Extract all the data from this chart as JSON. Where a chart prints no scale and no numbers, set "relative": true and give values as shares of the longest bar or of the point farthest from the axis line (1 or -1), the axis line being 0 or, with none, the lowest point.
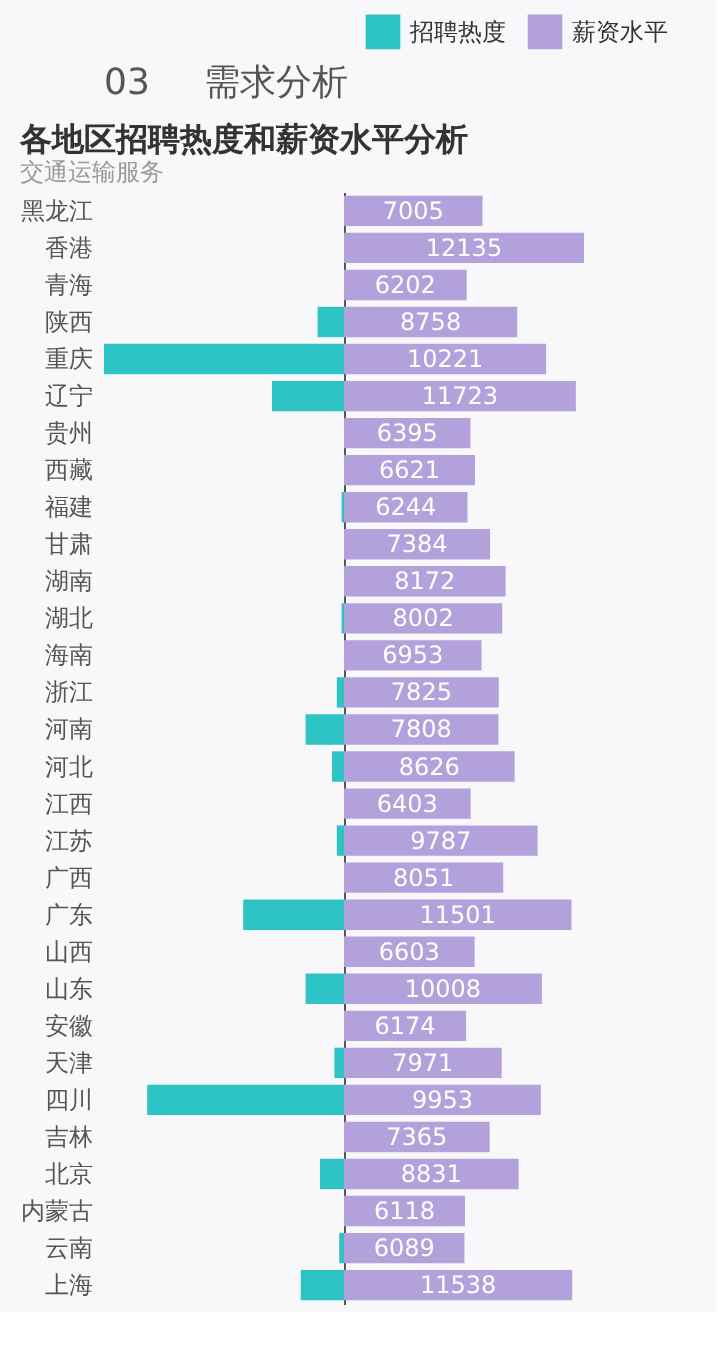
{
  "chart_data": [
    {
      "type": "bar",
      "orientation": "horizontal",
      "relative": true,
      "title": "各地区招聘热度和薪资水平分析",
      "subtitle": "交通运输服务",
      "annotations": [
        "03",
        "需求分析"
      ],
      "legend": "top",
      "categories": [
        "黑龙江",
        "香港",
        "青海",
        "陕西",
        "重庆",
        "辽宁",
        "贵州",
        "西藏",
        "福建",
        "甘肃",
        "湖南",
        "湖北",
        "海南",
        "浙江",
        "河南",
        "河北",
        "江西",
        "江苏",
        "广西",
        "广东",
        "山西",
        "山东",
        "安徽",
        "天津",
        "四川",
        "吉林",
        "北京",
        "内蒙古",
        "云南",
        "上海"
      ],
      "series": [
        {
          "name": "招聘热度",
          "color": "#2ec4c6",
          "values": [
            0,
            0,
            0,
            0.11,
            1,
            0.3,
            0,
            0,
            0.01,
            0,
            0,
            0.01,
            0,
            0.03,
            0.16,
            0.05,
            0,
            0.03,
            0,
            0.42,
            0,
            0.16,
            0,
            0.04,
            0.82,
            0,
            0.1,
            0,
            0.02,
            0.18
          ]
        }
      ]
    },
    {
      "type": "bar",
      "orientation": "horizontal",
      "data_labels": true,
      "tick_labels": false,
      "legend": "top",
      "categories": [
        null,
        null,
        null,
        null,
        null,
        null,
        null,
        null,
        null,
        null,
        null,
        null,
        null,
        null,
        null,
        null,
        null,
        null,
        null,
        null,
        null,
        null,
        null,
        null,
        null,
        null,
        null,
        null,
        null,
        null
      ],
      "series": [
        {
          "name": "薪资水平",
          "color": "#b3a1dc",
          "values": [
            7005,
            12135,
            6202,
            8758,
            10221,
            11723,
            6395,
            6621,
            6244,
            7384,
            8172,
            8002,
            6953,
            7825,
            7808,
            8626,
            6403,
            9787,
            8051,
            11501,
            6603,
            10008,
            6174,
            7971,
            9953,
            7365,
            8831,
            6118,
            6089,
            11538
          ]
        }
      ]
    }
  ]
}
